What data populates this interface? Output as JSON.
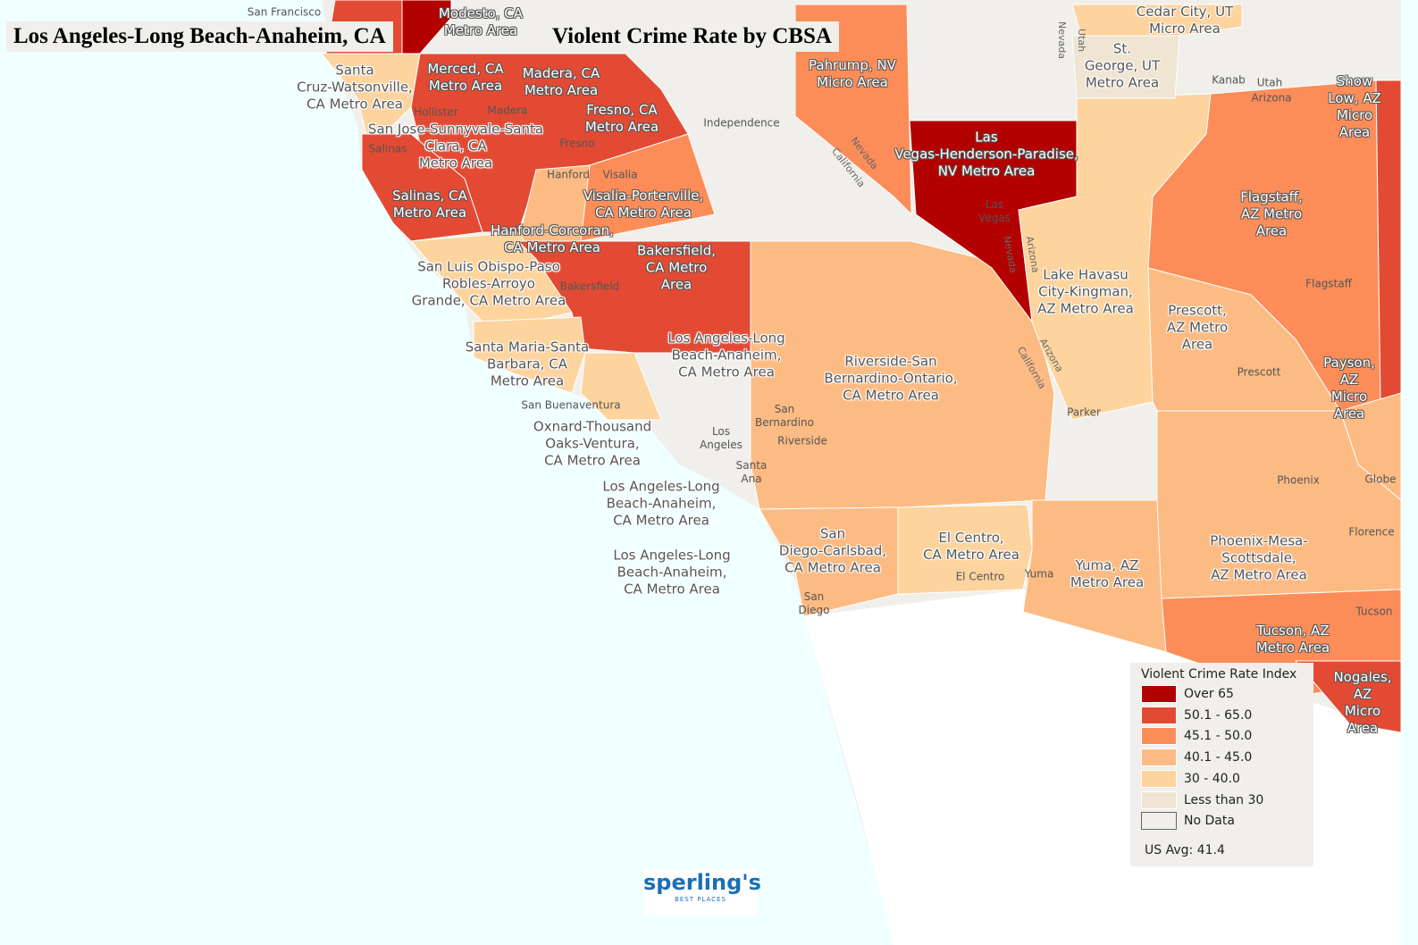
{
  "titles": {
    "left": "Los Angeles-Long Beach-Anaheim, CA",
    "main": "Violent Crime Rate by CBSA"
  },
  "colors": {
    "over65": "#b30000",
    "c50_65": "#e34a33",
    "c45_50": "#fc8d59",
    "c40_45": "#fdbb84",
    "c30_40": "#fdd49e",
    "lt30": "#f0e4d2",
    "nodata": "#f0efeb",
    "ocean": "#f0ffff"
  },
  "metro_labels": [
    "Modesto, CA\nMetro Area",
    "Santa\nCruz-Watsonville,\nCA Metro Area",
    "Merced, CA\nMetro Area",
    "Madera, CA\nMetro Area",
    "Fresno, CA\nMetro Area",
    "San Jose-Sunnyvale-Santa\nClara, CA\nMetro Area",
    "Salinas, CA\nMetro Area",
    "Visalia-Porterville,\nCA Metro Area",
    "Hanford-Corcoran,\nCA Metro Area",
    "Bakersfield,\nCA Metro\nArea",
    "San Luis Obispo-Paso\nRobles-Arroyo\nGrande, CA Metro Area",
    "Santa Maria-Santa\nBarbara, CA\nMetro Area",
    "Los Angeles-Long\nBeach-Anaheim,\nCA Metro Area",
    "Riverside-San\nBernardino-Ontario,\nCA Metro Area",
    "Oxnard-Thousand\nOaks-Ventura,\nCA Metro Area",
    "Los Angeles-Long\nBeach-Anaheim,\nCA Metro Area",
    "Los Angeles-Long\nBeach-Anaheim,\nCA Metro Area",
    "San\nDiego-Carlsbad,\nCA Metro Area",
    "El Centro,\nCA Metro Area",
    "Yuma, AZ\nMetro Area",
    "Pahrump, NV\nMicro Area",
    "Las\nVegas-Henderson-Paradise,\nNV Metro Area",
    "Lake Havasu\nCity-Kingman,\nAZ Metro Area",
    "Cedar City, UT\nMicro Area",
    "St.\nGeorge, UT\nMetro Area",
    "Show\nLow, AZ\nMicro Area",
    "Flagstaff,\nAZ Metro\nArea",
    "Prescott,\nAZ Metro\nArea",
    "Payson, AZ\nMicro Area",
    "Phoenix-Mesa-Scottsdale,\nAZ Metro Area",
    "Tucson, AZ\nMetro Area",
    "Nogales,\nAZ Micro\nArea"
  ],
  "cities": [
    "San Francisco",
    "Hollister",
    "Madera",
    "Fresno",
    "Salinas",
    "Hanford",
    "Visalia",
    "Independence",
    "Bakersfield",
    "San Buenaventura",
    "Los\nAngeles",
    "San\nBernardino",
    "Riverside",
    "Santa\nAna",
    "San\nDiego",
    "El Centro",
    "Yuma",
    "Parker",
    "Las\nVegas",
    "Kanab",
    "Utah",
    "Arizona",
    "Prescott",
    "Flagstaff",
    "Phoenix",
    "Globe",
    "Florence",
    "Tucson"
  ],
  "states": [
    "Nevada",
    "California",
    "Nevada",
    "Utah",
    "Arizona",
    "Nevada",
    "Arizona",
    "California"
  ],
  "legend": {
    "title": "Violent Crime Rate Index",
    "items": [
      "Over 65",
      "50.1 - 65.0",
      "45.1 - 50.0",
      "40.1 - 45.0",
      "30 - 40.0",
      "Less than 30",
      "No Data"
    ],
    "us_avg": "US Avg: 41.4"
  },
  "logo": {
    "name": "sperling's",
    "tag": "BEST PLACES"
  }
}
